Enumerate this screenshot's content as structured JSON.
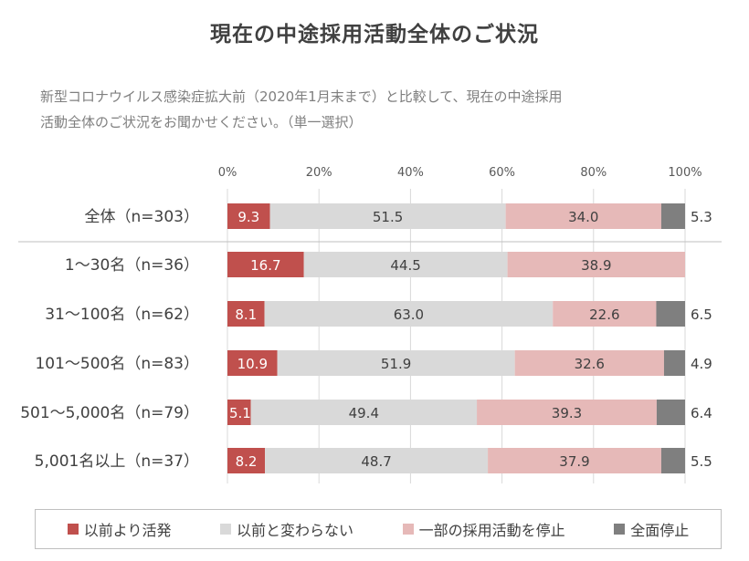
{
  "title": "現在の中途採用活動全体のご状況",
  "question_line1": "新型コロナウイルス感染症拡大前（2020年1月末まで）と比較して、現在の中途採用",
  "question_line2": "活動全体のご状況をお聞かせください。（単一選択）",
  "chart_data": {
    "type": "bar",
    "orientation": "horizontal",
    "stacked": true,
    "x_ticks": [
      "0%",
      "20%",
      "40%",
      "60%",
      "80%",
      "100%"
    ],
    "xlim": [
      0,
      100
    ],
    "categories": [
      "全体（n=303）",
      "1～30名（n=36）",
      "31～100名（n=62）",
      "101～500名（n=83）",
      "501～5,000名（n=79）",
      "5,001名以上（n=37）"
    ],
    "series": [
      {
        "name": "以前より活発",
        "color": "#c0504d",
        "label_color": "#ffffff",
        "values": [
          9.3,
          16.7,
          8.1,
          10.9,
          5.1,
          8.2
        ]
      },
      {
        "name": "以前と変わらない",
        "color": "#d9d9d9",
        "label_color": "#404040",
        "values": [
          51.5,
          44.5,
          63.0,
          51.9,
          49.4,
          48.7
        ]
      },
      {
        "name": "一部の採用活動を停止",
        "color": "#e6b9b8",
        "label_color": "#404040",
        "values": [
          34.0,
          38.9,
          22.6,
          32.6,
          39.3,
          37.9
        ]
      },
      {
        "name": "全面停止",
        "color": "#7f7f7f",
        "label_color": "#404040",
        "values": [
          5.3,
          null,
          6.5,
          4.9,
          6.4,
          5.5
        ]
      }
    ],
    "value_labels": [
      [
        "9.3",
        "51.5",
        "34.0",
        "5.3"
      ],
      [
        "16.7",
        "44.5",
        "38.9",
        ""
      ],
      [
        "8.1",
        "63.0",
        "22.6",
        "6.5"
      ],
      [
        "10.9",
        "51.9",
        "32.6",
        "4.9"
      ],
      [
        "5.1",
        "49.4",
        "39.3",
        "6.4"
      ],
      [
        "8.2",
        "48.7",
        "37.9",
        "5.5"
      ]
    ],
    "gridlines": true,
    "legend_position": "bottom"
  }
}
